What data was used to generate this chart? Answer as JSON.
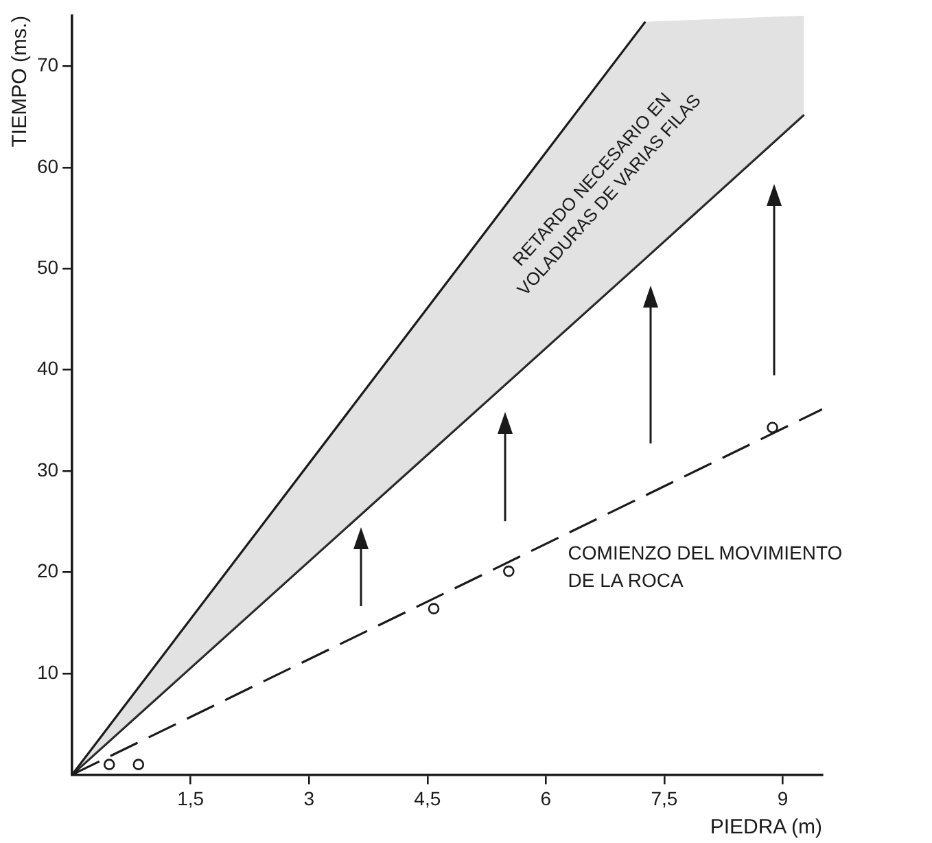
{
  "chart_data": {
    "type": "line",
    "xlabel": "PIEDRA (m)",
    "ylabel": "TIEMPO (ms.)",
    "xlim": [
      0,
      9.5
    ],
    "ylim": [
      0,
      75
    ],
    "xticks": [
      {
        "value": 1.5,
        "label": "1,5"
      },
      3,
      {
        "value": 4.5,
        "label": "4,5"
      },
      6,
      {
        "value": 7.5,
        "label": "7,5"
      },
      9
    ],
    "yticks": [
      10,
      20,
      30,
      40,
      50,
      60,
      70
    ],
    "grid": false,
    "legend": false,
    "series": [
      {
        "color": "#1a1a1a",
        "x": [
          0,
          7.26
        ],
        "values": [
          0,
          74.4
        ],
        "line_style": "solid",
        "marker": "none"
      },
      {
        "color": "#1a1a1a",
        "x": [
          0,
          7.26,
          9.27
        ],
        "values": [
          0,
          51.0,
          65.2
        ],
        "lower": [
          0,
          51.0,
          65.2
        ],
        "upper": [
          0,
          74.4,
          75
        ],
        "line_style": "solid",
        "marker": "none"
      },
      {
        "color": "#1a1a1a",
        "x": [
          0,
          9.5
        ],
        "values": [
          0,
          36.1
        ],
        "line_style": "dashed",
        "marker": "none"
      },
      {
        "type": "scatter",
        "color": "#1a1a1a",
        "x": [
          0.47,
          0.84,
          4.58,
          5.53,
          8.87
        ],
        "values": [
          1.0,
          1.0,
          16.4,
          20.1,
          34.3
        ],
        "marker": "circle"
      }
    ],
    "annotations": [
      "RETARDO NECESARIO EN\nVOLADURAS DE VARIAS FILAS",
      "COMIENZO DEL MOVIMIENTO\nDE LA ROCA"
    ]
  }
}
